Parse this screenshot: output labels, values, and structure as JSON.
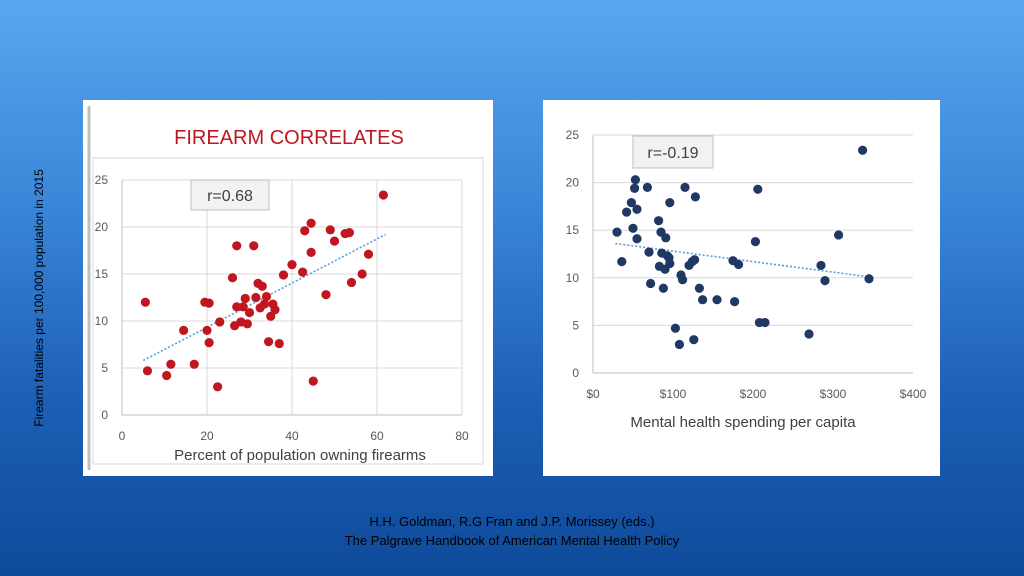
{
  "slide": {
    "y_axis_label": "Firearm fatalities per 100,000 population in 2015",
    "caption_line1": "H.H. Goldman, R.G Fran and J.P. Morissey (eds.)",
    "caption_line2": "The Palgrave Handbook of American Mental Health Policy"
  },
  "chart_data": [
    {
      "type": "scatter",
      "title": "FIREARM CORRELATES",
      "annotation": "r=0.68",
      "xlabel": "Percent of population owning firearms",
      "ylabel": "",
      "xlim": [
        0,
        80
      ],
      "ylim": [
        0,
        25
      ],
      "x_ticks": [
        0,
        20,
        40,
        60,
        80
      ],
      "y_ticks": [
        0,
        5,
        10,
        15,
        20,
        25
      ],
      "x_tick_labels": [
        "0",
        "20",
        "40",
        "60",
        "80"
      ],
      "y_tick_labels": [
        "0",
        "5",
        "10",
        "15",
        "20",
        "25"
      ],
      "grid": true,
      "trendline": {
        "style": "dotted",
        "x": [
          5,
          62
        ],
        "y": [
          5.8,
          19.2
        ]
      },
      "colors": {
        "marker": "#c0161f",
        "trend": "#5b9bd5",
        "title": "#c0161f"
      },
      "points": [
        {
          "x": 5.5,
          "y": 12
        },
        {
          "x": 6,
          "y": 4.7
        },
        {
          "x": 10.5,
          "y": 4.2
        },
        {
          "x": 11.5,
          "y": 5.4
        },
        {
          "x": 14.5,
          "y": 9
        },
        {
          "x": 17,
          "y": 5.4
        },
        {
          "x": 19.5,
          "y": 12
        },
        {
          "x": 20.5,
          "y": 11.9
        },
        {
          "x": 20,
          "y": 9
        },
        {
          "x": 20.5,
          "y": 7.7
        },
        {
          "x": 22.5,
          "y": 3
        },
        {
          "x": 23,
          "y": 9.9
        },
        {
          "x": 26,
          "y": 14.6
        },
        {
          "x": 26.5,
          "y": 9.5
        },
        {
          "x": 27,
          "y": 11.5
        },
        {
          "x": 27,
          "y": 18
        },
        {
          "x": 28,
          "y": 9.9
        },
        {
          "x": 28.5,
          "y": 11.5
        },
        {
          "x": 29,
          "y": 12.4
        },
        {
          "x": 29.5,
          "y": 9.7
        },
        {
          "x": 30,
          "y": 10.9
        },
        {
          "x": 31,
          "y": 18
        },
        {
          "x": 31.5,
          "y": 12.5
        },
        {
          "x": 32,
          "y": 14
        },
        {
          "x": 32.5,
          "y": 11.4
        },
        {
          "x": 33,
          "y": 13.7
        },
        {
          "x": 33.5,
          "y": 11.8
        },
        {
          "x": 34,
          "y": 12.6
        },
        {
          "x": 34.5,
          "y": 7.8
        },
        {
          "x": 35,
          "y": 10.5
        },
        {
          "x": 35.5,
          "y": 11.8
        },
        {
          "x": 36,
          "y": 11.2
        },
        {
          "x": 37,
          "y": 7.6
        },
        {
          "x": 38,
          "y": 14.9
        },
        {
          "x": 40,
          "y": 16
        },
        {
          "x": 42.5,
          "y": 15.2
        },
        {
          "x": 43,
          "y": 19.6
        },
        {
          "x": 44.5,
          "y": 17.3
        },
        {
          "x": 44.5,
          "y": 20.4
        },
        {
          "x": 45,
          "y": 3.6
        },
        {
          "x": 48,
          "y": 12.8
        },
        {
          "x": 49,
          "y": 19.7
        },
        {
          "x": 50,
          "y": 18.5
        },
        {
          "x": 52.5,
          "y": 19.3
        },
        {
          "x": 53.5,
          "y": 19.4
        },
        {
          "x": 54,
          "y": 14.1
        },
        {
          "x": 56.5,
          "y": 15
        },
        {
          "x": 58,
          "y": 17.1
        },
        {
          "x": 61.5,
          "y": 23.4
        }
      ]
    },
    {
      "type": "scatter",
      "title": "",
      "annotation": "r=-0.19",
      "xlabel": "Mental health spending per capita",
      "ylabel": "",
      "xlim": [
        0,
        400
      ],
      "ylim": [
        0,
        25
      ],
      "x_ticks": [
        0,
        100,
        200,
        300,
        400
      ],
      "y_ticks": [
        0,
        5,
        10,
        15,
        20,
        25
      ],
      "x_tick_labels": [
        "$0",
        "$100",
        "$200",
        "$300",
        "$400"
      ],
      "y_tick_labels": [
        "0",
        "5",
        "10",
        "15",
        "20",
        "25"
      ],
      "grid": true,
      "trendline": {
        "style": "dotted",
        "x": [
          28,
          345
        ],
        "y": [
          13.6,
          10.1
        ]
      },
      "colors": {
        "marker": "#1f3864",
        "trend": "#5b9bd5"
      },
      "points": [
        {
          "x": 30,
          "y": 14.8
        },
        {
          "x": 36,
          "y": 11.7
        },
        {
          "x": 42,
          "y": 16.9
        },
        {
          "x": 48,
          "y": 17.9
        },
        {
          "x": 50,
          "y": 15.2
        },
        {
          "x": 52,
          "y": 19.4
        },
        {
          "x": 53,
          "y": 20.3
        },
        {
          "x": 55,
          "y": 17.2
        },
        {
          "x": 55,
          "y": 14.1
        },
        {
          "x": 68,
          "y": 19.5
        },
        {
          "x": 70,
          "y": 12.7
        },
        {
          "x": 72,
          "y": 9.4
        },
        {
          "x": 82,
          "y": 16
        },
        {
          "x": 83,
          "y": 11.2
        },
        {
          "x": 85,
          "y": 14.8
        },
        {
          "x": 86,
          "y": 12.6
        },
        {
          "x": 88,
          "y": 8.9
        },
        {
          "x": 90,
          "y": 10.9
        },
        {
          "x": 91,
          "y": 14.2
        },
        {
          "x": 93,
          "y": 12.3
        },
        {
          "x": 95,
          "y": 12.1
        },
        {
          "x": 96,
          "y": 17.9
        },
        {
          "x": 96,
          "y": 11.5
        },
        {
          "x": 103,
          "y": 4.7
        },
        {
          "x": 108,
          "y": 3
        },
        {
          "x": 110,
          "y": 10.3
        },
        {
          "x": 112,
          "y": 9.8
        },
        {
          "x": 115,
          "y": 19.5
        },
        {
          "x": 120,
          "y": 11.3
        },
        {
          "x": 124,
          "y": 11.7
        },
        {
          "x": 126,
          "y": 3.5
        },
        {
          "x": 127,
          "y": 11.9
        },
        {
          "x": 128,
          "y": 18.5
        },
        {
          "x": 133,
          "y": 8.9
        },
        {
          "x": 137,
          "y": 7.7
        },
        {
          "x": 155,
          "y": 7.7
        },
        {
          "x": 175,
          "y": 11.8
        },
        {
          "x": 177,
          "y": 7.5
        },
        {
          "x": 182,
          "y": 11.4
        },
        {
          "x": 203,
          "y": 13.8
        },
        {
          "x": 206,
          "y": 19.3
        },
        {
          "x": 208,
          "y": 5.3
        },
        {
          "x": 215,
          "y": 5.3
        },
        {
          "x": 270,
          "y": 4.1
        },
        {
          "x": 285,
          "y": 11.3
        },
        {
          "x": 290,
          "y": 9.7
        },
        {
          "x": 307,
          "y": 14.5
        },
        {
          "x": 337,
          "y": 23.4
        },
        {
          "x": 345,
          "y": 9.9
        }
      ]
    }
  ]
}
